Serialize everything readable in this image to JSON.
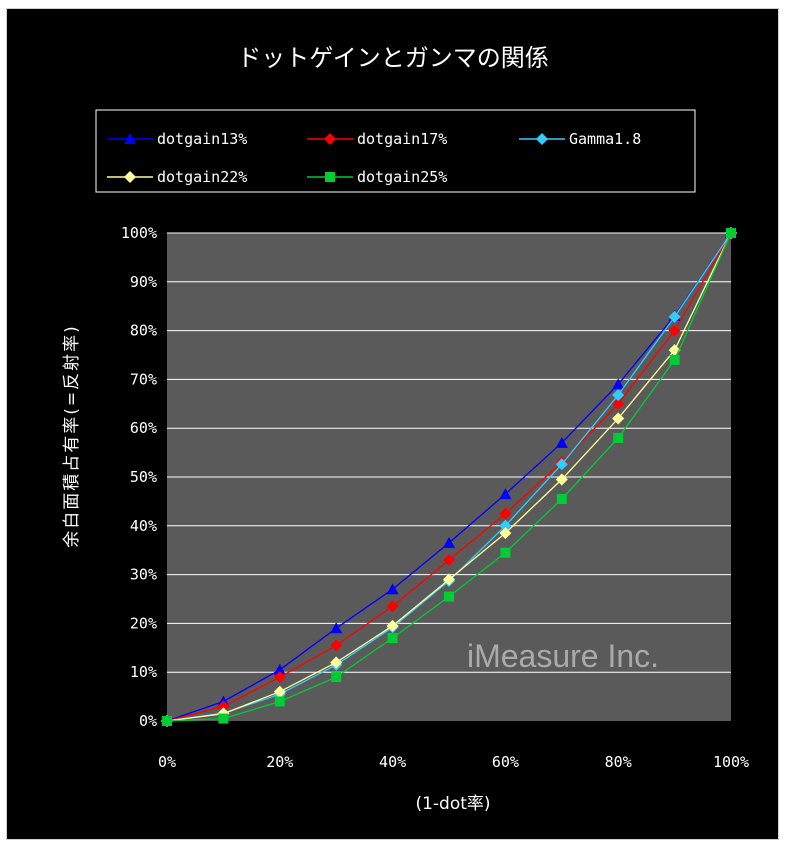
{
  "chart_data": {
    "type": "line",
    "title": "ドットゲインとガンマの関係",
    "xlabel": "(1-dot率)",
    "ylabel": "余白面積占有率(=反射率)",
    "x": [
      0,
      10,
      20,
      30,
      40,
      50,
      60,
      70,
      80,
      90,
      100
    ],
    "x_ticks": [
      "0%",
      "20%",
      "40%",
      "60%",
      "80%",
      "100%"
    ],
    "y_ticks": [
      "0%",
      "10%",
      "20%",
      "30%",
      "40%",
      "50%",
      "60%",
      "70%",
      "80%",
      "90%",
      "100%"
    ],
    "xlim": [
      0,
      100
    ],
    "ylim": [
      0,
      100
    ],
    "grid": true,
    "legend_position": "top",
    "background": "#5a5a5a",
    "series": [
      {
        "name": "dotgain13%",
        "color": "#0000ff",
        "marker": "triangle",
        "values": [
          0,
          4,
          10.5,
          19,
          27,
          36.5,
          46.5,
          57,
          69,
          83,
          100
        ]
      },
      {
        "name": "dotgain17%",
        "color": "#ff0000",
        "marker": "diamond",
        "values": [
          0,
          3,
          9,
          15.5,
          23.5,
          33,
          42.5,
          53,
          65,
          80,
          100
        ]
      },
      {
        "name": "Gamma1.8",
        "color": "#33ccff",
        "marker": "diamond",
        "values": [
          0,
          1.6,
          5.5,
          11.5,
          19.2,
          28.7,
          40,
          52.6,
          66.8,
          82.8,
          100
        ]
      },
      {
        "name": "dotgain22%",
        "color": "#ffff99",
        "marker": "diamond",
        "values": [
          0,
          1.5,
          6,
          12,
          19.5,
          29,
          38.5,
          49.5,
          62,
          76,
          100
        ]
      },
      {
        "name": "dotgain25%",
        "color": "#00cc33",
        "marker": "square",
        "values": [
          0,
          0.5,
          4,
          9,
          17,
          25.5,
          34.5,
          45.5,
          58,
          74,
          100
        ]
      }
    ]
  },
  "watermark": "iMeasure Inc."
}
